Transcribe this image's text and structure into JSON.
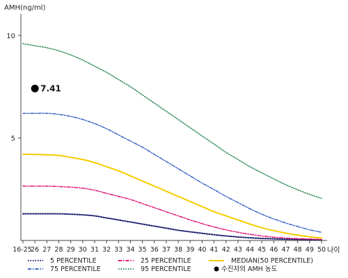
{
  "chart_data": {
    "type": "line",
    "ylabel": "AMH(ng/ml)",
    "xlabel": "나이",
    "ylim": [
      0,
      11
    ],
    "yticks": [
      5,
      10
    ],
    "categories": [
      "16-25",
      "26",
      "27",
      "28",
      "29",
      "30",
      "31",
      "32",
      "33",
      "34",
      "35",
      "36",
      "37",
      "38",
      "39",
      "40",
      "41",
      "42",
      "43",
      "44",
      "45",
      "46",
      "47",
      "48",
      "49",
      "50"
    ],
    "series": [
      {
        "name": "5 PERCENTILE",
        "color": "#1a1a6e",
        "dash": "1.5,2",
        "width": 2,
        "values": [
          1.3,
          1.3,
          1.3,
          1.3,
          1.28,
          1.25,
          1.2,
          1.1,
          1.0,
          0.9,
          0.8,
          0.7,
          0.6,
          0.5,
          0.42,
          0.35,
          0.28,
          0.22,
          0.17,
          0.13,
          0.1,
          0.08,
          0.06,
          0.05,
          0.04,
          0.03
        ]
      },
      {
        "name": "25 PERCENTILE",
        "color": "#e0157a",
        "dash": "5,2,1.5,2",
        "width": 1.5,
        "values": [
          2.65,
          2.65,
          2.65,
          2.63,
          2.6,
          2.55,
          2.45,
          2.3,
          2.15,
          2.0,
          1.8,
          1.6,
          1.4,
          1.2,
          1.0,
          0.82,
          0.66,
          0.52,
          0.4,
          0.3,
          0.22,
          0.16,
          0.12,
          0.09,
          0.07,
          0.05
        ]
      },
      {
        "name": "MEDIAN(50 PERCENTILE)",
        "color": "#f5cc00",
        "dash": "",
        "width": 2,
        "values": [
          4.2,
          4.2,
          4.18,
          4.15,
          4.05,
          3.95,
          3.8,
          3.6,
          3.4,
          3.15,
          2.9,
          2.65,
          2.4,
          2.15,
          1.9,
          1.65,
          1.4,
          1.2,
          1.0,
          0.8,
          0.62,
          0.48,
          0.36,
          0.26,
          0.18,
          0.12
        ]
      },
      {
        "name": "75 PERCENTILE",
        "color": "#3c64c8",
        "dash": "5,2,1.5,2",
        "width": 1.5,
        "values": [
          6.2,
          6.2,
          6.2,
          6.15,
          6.05,
          5.9,
          5.7,
          5.45,
          5.15,
          4.85,
          4.55,
          4.2,
          3.85,
          3.5,
          3.15,
          2.8,
          2.48,
          2.15,
          1.85,
          1.55,
          1.28,
          1.05,
          0.85,
          0.68,
          0.52,
          0.4
        ]
      },
      {
        "name": "95 PERCENTILE",
        "color": "#2e8b57",
        "dash": "1.5,2",
        "width": 1.5,
        "values": [
          9.6,
          9.5,
          9.4,
          9.25,
          9.05,
          8.8,
          8.5,
          8.2,
          7.85,
          7.5,
          7.1,
          6.7,
          6.3,
          5.9,
          5.5,
          5.1,
          4.7,
          4.3,
          3.95,
          3.6,
          3.3,
          3.0,
          2.72,
          2.47,
          2.25,
          2.05
        ]
      }
    ],
    "marker": {
      "name": "수진자의 AMH 농도",
      "x": "26",
      "y": 7.41,
      "label": "7.41",
      "color": "#000000"
    },
    "legend": {
      "placement": "bottom",
      "order": [
        "5 PERCENTILE",
        "25 PERCENTILE",
        "MEDIAN(50 PERCENTILE)",
        "75 PERCENTILE",
        "95 PERCENTILE",
        "수진자의 AMH 농도"
      ]
    }
  }
}
